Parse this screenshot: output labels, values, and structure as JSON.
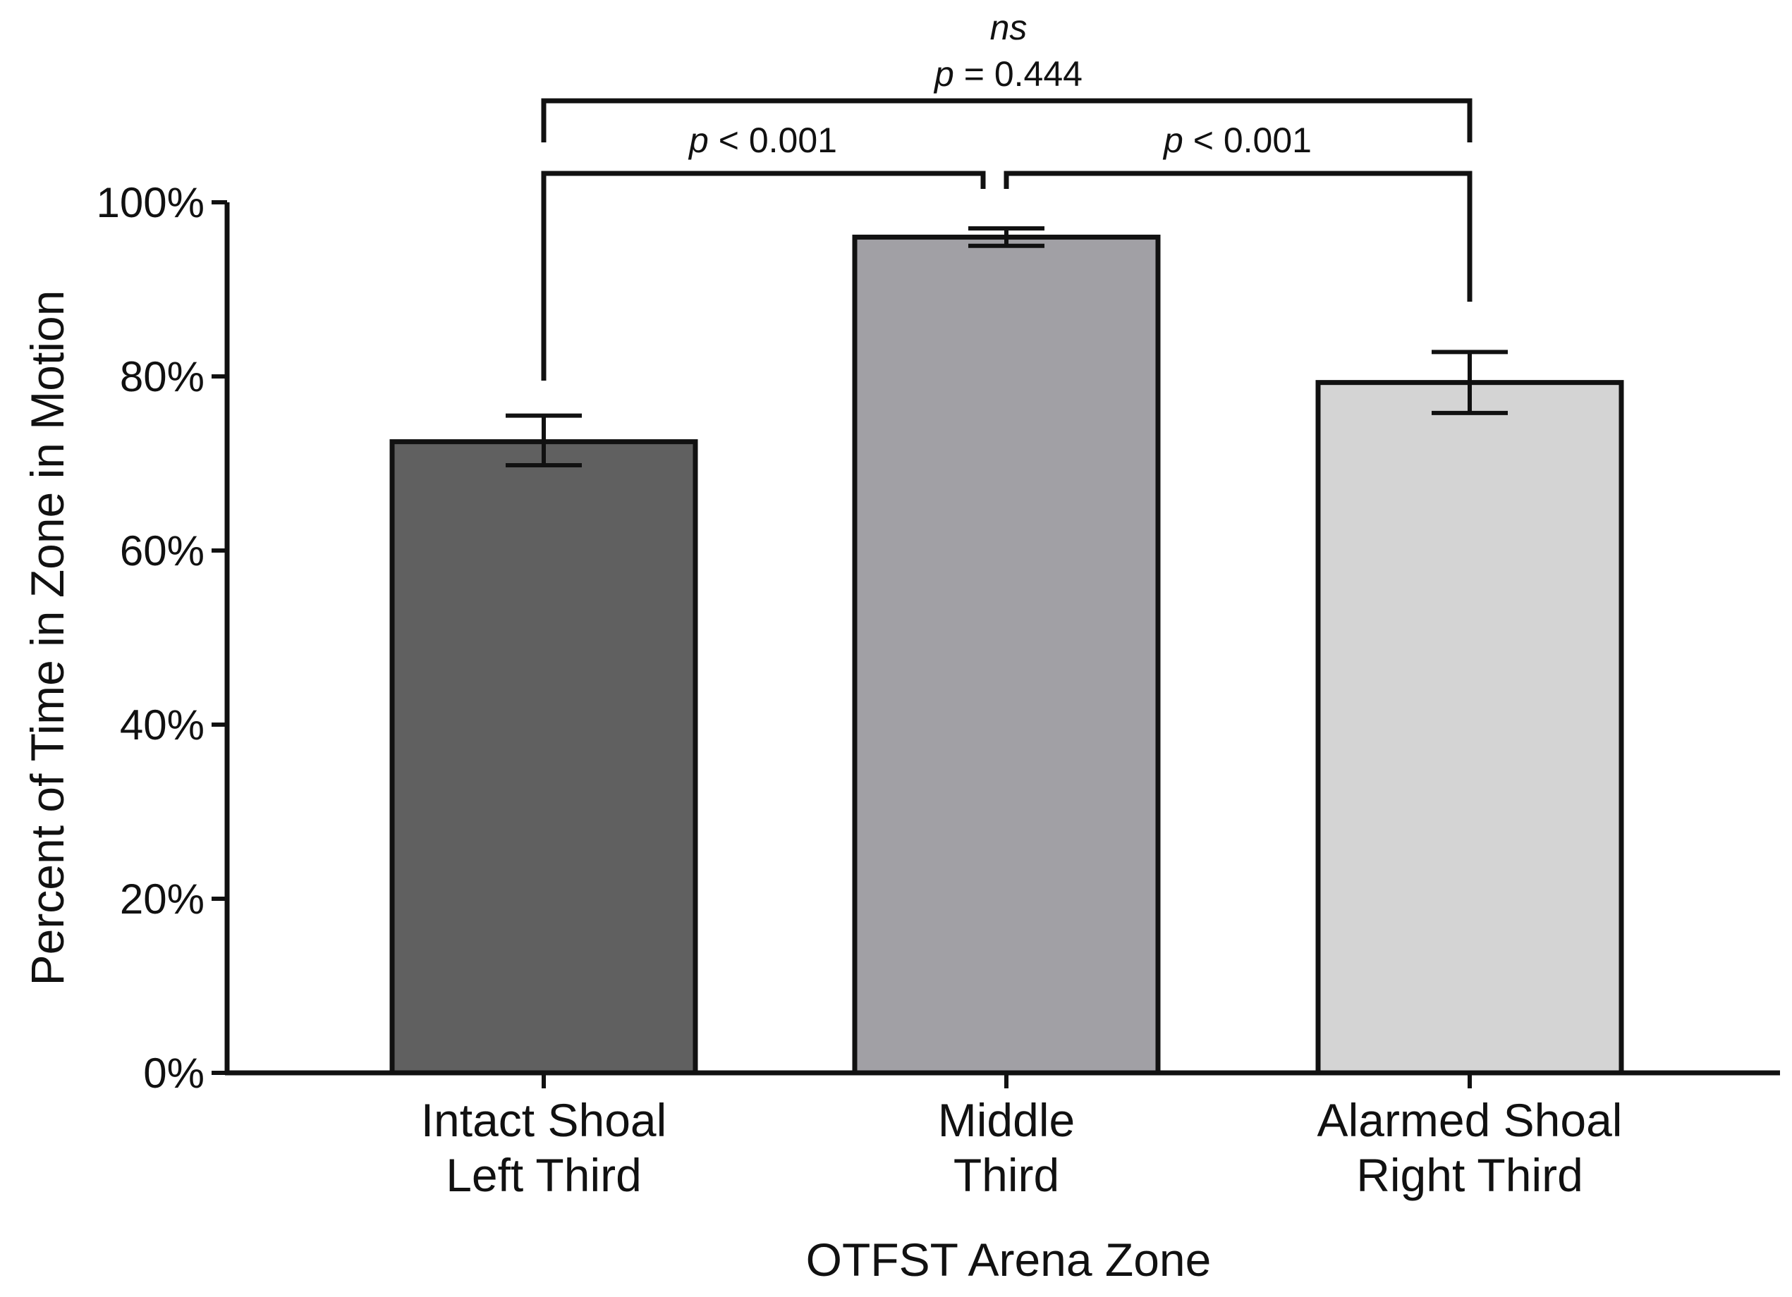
{
  "chart_data": {
    "type": "bar",
    "categories": [
      [
        "Intact Shoal",
        "Left Third"
      ],
      [
        "Middle",
        "Third"
      ],
      [
        "Alarmed Shoal",
        "Right Third"
      ]
    ],
    "values": [
      72.5,
      96.0,
      79.3
    ],
    "errors": [
      {
        "low": 69.8,
        "high": 75.5
      },
      {
        "low": 95.0,
        "high": 97.0
      },
      {
        "low": 75.8,
        "high": 82.8
      }
    ],
    "bar_colors": [
      "#606060",
      "#a1a0a5",
      "#d4d4d4"
    ],
    "ylim": [
      0,
      100
    ],
    "yticks": [
      {
        "value": 0,
        "label": "0%"
      },
      {
        "value": 20,
        "label": "20%"
      },
      {
        "value": 40,
        "label": "40%"
      },
      {
        "value": 60,
        "label": "60%"
      },
      {
        "value": 80,
        "label": "80%"
      },
      {
        "value": 100,
        "label": "100%"
      }
    ],
    "xlabel": "OTFST Arena Zone",
    "ylabel": "Percent of Time in Zone in  Motion",
    "annotations": {
      "left_pair": {
        "p_symbol": "p",
        "p_text": " < 0.001"
      },
      "right_pair": {
        "p_symbol": "p",
        "p_text": " < 0.001"
      },
      "outer_pair": {
        "ns": "ns",
        "p_symbol": "p",
        "p_text": " = 0.444"
      }
    },
    "grid": false,
    "legend": "none"
  }
}
